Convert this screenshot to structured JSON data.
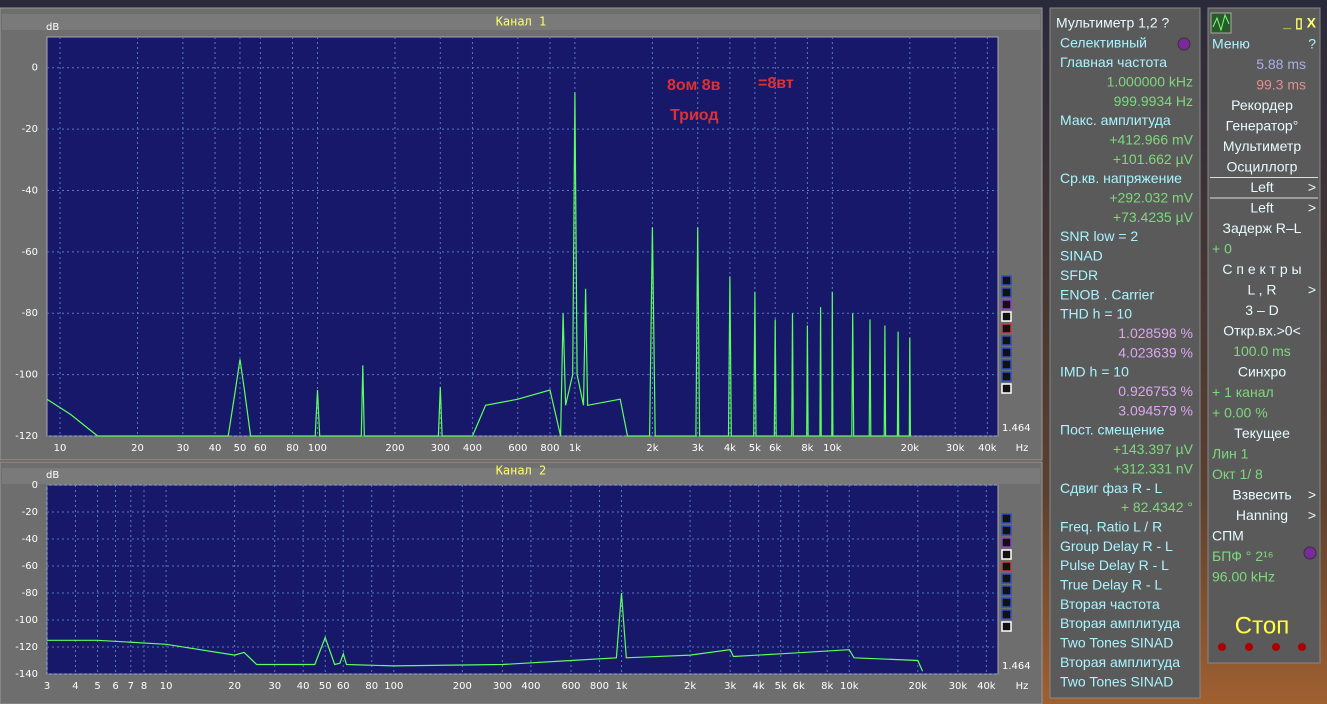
{
  "chart_data": [
    {
      "type": "line",
      "title": "Канал 1",
      "y_label": "dB",
      "x_unit": "Hz",
      "xscale": "log",
      "grid": true,
      "color": "#5cff5c",
      "annotations": [
        "8ом  8в",
        "=8вт",
        "Триод"
      ],
      "xlim": [
        8.9,
        44000
      ],
      "ylim": [
        -120,
        10
      ],
      "yticks": [
        -120,
        -100,
        -80,
        -60,
        -40,
        -20,
        0
      ],
      "xticks": [
        10,
        20,
        30,
        40,
        50,
        60,
        80,
        100,
        200,
        300,
        400,
        600,
        800,
        {
          "value": 1000,
          "label": "1k"
        },
        {
          "value": 2000,
          "label": "2k"
        },
        {
          "value": 3000,
          "label": "3k"
        },
        {
          "value": 4000,
          "label": "4k"
        },
        {
          "value": 5000,
          "label": "5k"
        },
        {
          "value": 6000,
          "label": "6k"
        },
        {
          "value": 8000,
          "label": "8k"
        },
        {
          "value": 10000,
          "label": "10k"
        },
        {
          "value": 20000,
          "label": "20k"
        },
        {
          "value": 30000,
          "label": "30k"
        },
        {
          "value": 40000,
          "label": "40k"
        }
      ],
      "x": [
        8.9,
        11,
        14,
        45,
        48,
        50,
        52,
        55,
        98,
        100,
        102,
        148,
        150,
        152,
        295,
        300,
        305,
        400,
        450,
        600,
        800,
        880,
        900,
        920,
        980,
        1000,
        1020,
        1080,
        1100,
        1120,
        1500,
        1600,
        1950,
        2000,
        2050,
        2950,
        3000,
        3050,
        3950,
        4000,
        4050,
        4950,
        5000,
        5050,
        5950,
        6000,
        6050,
        6950,
        7000,
        7050,
        7950,
        8000,
        8050,
        8950,
        9000,
        9050,
        9950,
        10000,
        10050,
        11900,
        12000,
        12100,
        13900,
        14000,
        14100,
        15900,
        16000,
        16100,
        17900,
        18000,
        18100,
        19900,
        20000,
        20100
      ],
      "values": [
        -108,
        -113,
        -120,
        -120,
        -105,
        -95,
        -105,
        -120,
        -120,
        -105,
        -120,
        -120,
        -97,
        -120,
        -120,
        -104,
        -120,
        -120,
        -110,
        -108,
        -105,
        -120,
        -80,
        -110,
        -100,
        -8,
        -100,
        -110,
        -72,
        -110,
        -108,
        -120,
        -120,
        -52,
        -120,
        -120,
        -52,
        -120,
        -120,
        -68,
        -120,
        -120,
        -73,
        -120,
        -120,
        -82,
        -120,
        -120,
        -80,
        -120,
        -120,
        -84,
        -120,
        -120,
        -78,
        -120,
        -120,
        -73,
        -120,
        -120,
        -80,
        -120,
        -120,
        -82,
        -120,
        -120,
        -84,
        -120,
        -120,
        -86,
        -120,
        -120,
        -88,
        -120
      ]
    },
    {
      "type": "line",
      "title": "Канал 2",
      "y_label": "dB",
      "x_unit": "Hz",
      "xscale": "log",
      "grid": true,
      "color": "#5cff5c",
      "xlim": [
        3,
        45000
      ],
      "ylim": [
        -140,
        0
      ],
      "yticks": [
        -140,
        -120,
        -100,
        -80,
        -60,
        -40,
        -20,
        0
      ],
      "xticks": [
        3,
        4,
        5,
        6,
        7,
        8,
        10,
        20,
        30,
        40,
        50,
        60,
        80,
        100,
        200,
        300,
        400,
        600,
        800,
        {
          "value": 1000,
          "label": "1k"
        },
        {
          "value": 2000,
          "label": "2k"
        },
        {
          "value": 3000,
          "label": "3k"
        },
        {
          "value": 4000,
          "label": "4k"
        },
        {
          "value": 5000,
          "label": "5k"
        },
        {
          "value": 6000,
          "label": "6k"
        },
        {
          "value": 8000,
          "label": "8k"
        },
        {
          "value": 10000,
          "label": "10k"
        },
        {
          "value": 20000,
          "label": "20k"
        },
        {
          "value": 30000,
          "label": "30k"
        },
        {
          "value": 40000,
          "label": "40k"
        }
      ],
      "x": [
        3,
        5,
        10,
        20,
        22,
        25,
        45,
        50,
        55,
        58,
        60,
        62,
        100,
        300,
        600,
        950,
        1000,
        1050,
        2000,
        3000,
        3100,
        5000,
        10000,
        10500,
        20000,
        21000
      ],
      "values": [
        -115,
        -115,
        -118,
        -126,
        -124,
        -133,
        -133,
        -113,
        -133,
        -132,
        -125,
        -133,
        -134,
        -133,
        -130,
        -128,
        -80,
        -128,
        -126,
        -122,
        -127,
        -125,
        -122,
        -128,
        -130,
        -138
      ]
    }
  ],
  "scale_readout": [
    "1.464",
    "1.464"
  ],
  "multimeter": {
    "title": "Мультиметр 1,2  ?",
    "rows": [
      {
        "text": "Селективный",
        "align": "left",
        "color": "#a8f4ff"
      },
      {
        "text": "Главная частота",
        "align": "left",
        "color": "#a8f4ff"
      },
      {
        "text": "1.000000 kHz",
        "align": "right",
        "color": "#7ed87e"
      },
      {
        "text": "999.9934  Hz",
        "align": "right",
        "color": "#7ed87e"
      },
      {
        "text": "Макс. амплитуда",
        "align": "left",
        "color": "#a8f4ff"
      },
      {
        "text": "+412.966 mV",
        "align": "right",
        "color": "#7ed87e"
      },
      {
        "text": "+101.662 µV",
        "align": "right",
        "color": "#7ed87e"
      },
      {
        "text": "Ср.кв. напряжение",
        "align": "left",
        "color": "#a8f4ff"
      },
      {
        "text": "+292.032 mV",
        "align": "right",
        "color": "#7ed87e"
      },
      {
        "text": "+73.4235 µV",
        "align": "right",
        "color": "#7ed87e"
      },
      {
        "text": "SNR      low =   2",
        "align": "left",
        "color": "#a8f4ff"
      },
      {
        "text": "SINAD",
        "align": "left",
        "color": "#a8f4ff"
      },
      {
        "text": "SFDR",
        "align": "left",
        "color": "#a8f4ff"
      },
      {
        "text": "ENOB . Carrier",
        "align": "left",
        "color": "#a8f4ff"
      },
      {
        "text": "THD      h =   10",
        "align": "left",
        "color": "#a8f4ff"
      },
      {
        "text": "1.028598 %",
        "align": "right",
        "color": "#dba6ef"
      },
      {
        "text": "4.023639 %",
        "align": "right",
        "color": "#dba6ef"
      },
      {
        "text": "IMD      h =   10",
        "align": "left",
        "color": "#a8f4ff"
      },
      {
        "text": "0.926753 %",
        "align": "right",
        "color": "#dba6ef"
      },
      {
        "text": "3.094579 %",
        "align": "right",
        "color": "#dba6ef"
      },
      {
        "text": "Пост. смещение",
        "align": "left",
        "color": "#a8f4ff"
      },
      {
        "text": "+143.397 µV",
        "align": "right",
        "color": "#7ed87e"
      },
      {
        "text": "+312.331 nV",
        "align": "right",
        "color": "#7ed87e"
      },
      {
        "text": "Сдвиг фаз R - L",
        "align": "left",
        "color": "#a8f4ff"
      },
      {
        "text": "+ 82.4342 °",
        "align": "right",
        "color": "#7ed87e"
      },
      {
        "text": "Freq. Ratio  L / R",
        "align": "left",
        "color": "#a8f4ff"
      },
      {
        "text": "Group Delay R - L",
        "align": "left",
        "color": "#a8f4ff"
      },
      {
        "text": "Pulse Delay R - L",
        "align": "left",
        "color": "#a8f4ff"
      },
      {
        "text": "True Delay R - L",
        "align": "left",
        "color": "#a8f4ff"
      },
      {
        "text": "Вторая частота",
        "align": "left",
        "color": "#a8f4ff"
      },
      {
        "text": "Вторая амплитуда",
        "align": "left",
        "color": "#a8f4ff"
      },
      {
        "text": "Two Tones SINAD",
        "align": "left",
        "color": "#a8f4ff"
      },
      {
        "text": "Вторая амплитуда",
        "align": "left",
        "color": "#a8f4ff"
      },
      {
        "text": "Two Tones SINAD",
        "align": "left",
        "color": "#a8f4ff"
      }
    ]
  },
  "menu": {
    "window_buttons": "_  ▯  X",
    "rows": [
      {
        "text": "Меню",
        "suffix": "?",
        "align": "left",
        "color": "#a8f4ff"
      },
      {
        "text": "5.88 ms",
        "align": "right",
        "color": "#a8b0e8"
      },
      {
        "text": "99.3 ms",
        "align": "right",
        "color": "#e09090"
      },
      {
        "text": "Рекордер",
        "align": "center",
        "color": "#e8fbff"
      },
      {
        "text": "Генератор°",
        "align": "center",
        "color": "#e8fbff"
      },
      {
        "text": "Мультиметр",
        "align": "center",
        "color": "#e8fbff"
      },
      {
        "text": "Осциллогр",
        "align": "center",
        "color": "#e8fbff"
      },
      {
        "text": "Left",
        "suffix": ">",
        "align": "center",
        "color": "#e8fbff"
      },
      {
        "text": "Left",
        "suffix": ">",
        "align": "center",
        "color": "#e8fbff"
      },
      {
        "text": "Задерж  R–L",
        "align": "center",
        "color": "#e8fbff"
      },
      {
        "text": "+           0",
        "align": "left",
        "color": "#7ed87e"
      },
      {
        "text": "С п е к т р ы",
        "align": "center",
        "color": "#e8fbff"
      },
      {
        "text": "L , R",
        "suffix": ">",
        "align": "center",
        "color": "#e8fbff"
      },
      {
        "text": "3 – D",
        "align": "center",
        "color": "#e8fbff"
      },
      {
        "text": "Откр.вх.>0<",
        "align": "center",
        "color": "#e8fbff"
      },
      {
        "text": "100.0 ms",
        "align": "center",
        "color": "#7ed87e"
      },
      {
        "text": "Синхро",
        "align": "center",
        "color": "#e8fbff"
      },
      {
        "text": "+ 1 канал",
        "align": "left",
        "color": "#7ed87e"
      },
      {
        "text": "+ 0.00 %",
        "align": "left",
        "color": "#7ed87e"
      },
      {
        "text": "Текущее",
        "align": "center",
        "color": "#e8fbff"
      },
      {
        "text": "Лин          1",
        "align": "left",
        "color": "#7ed87e"
      },
      {
        "text": "Окт  1/  8",
        "align": "left",
        "color": "#7ed87e"
      },
      {
        "text": "Взвесить",
        "suffix": ">",
        "align": "center",
        "color": "#e8fbff"
      },
      {
        "text": "Hanning",
        "suffix": ">",
        "align": "center",
        "color": "#e8fbff"
      },
      {
        "text": "СПМ",
        "align": "left",
        "color": "#e8fbff"
      },
      {
        "text": "БПФ ° 2¹⁶",
        "align": "left",
        "color": "#7ed87e"
      },
      {
        "text": "96.00 kHz",
        "align": "left",
        "color": "#7ed87e"
      }
    ],
    "stop": "Стоп"
  }
}
